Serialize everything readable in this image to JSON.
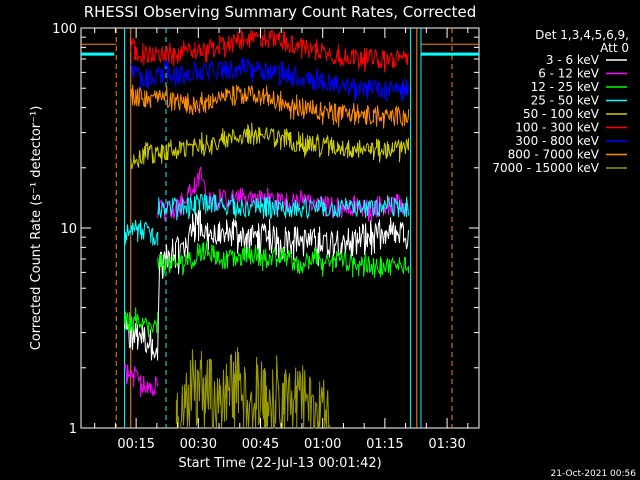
{
  "chart_data": {
    "type": "line",
    "title": "RHESSI Observing Summary Count Rates, Corrected",
    "xlabel": "Start Time (22-Jul-13 00:01:42)",
    "ylabel": "Corrected Count Rate (s⁻¹ detector⁻¹)",
    "x_ticks": [
      "00:15",
      "00:30",
      "00:45",
      "01:00",
      "01:15",
      "01:30"
    ],
    "y_ticks": [
      "1",
      "10",
      "100"
    ],
    "yscale": "log",
    "xlim_minutes": [
      0,
      96
    ],
    "ylim": [
      1,
      100
    ],
    "legend_header": [
      "Det 1,3,4,5,6,9,",
      "Att 0"
    ],
    "legend_position": "right",
    "footer_date": "21-Oct-2021 00:56",
    "vlines": [
      {
        "t": 8.5,
        "color": "#ff8c00",
        "style": "dashed"
      },
      {
        "t": 10.5,
        "color": "#00ffff",
        "style": "solid"
      },
      {
        "t": 12.0,
        "color": "#ff8c00",
        "style": "solid"
      },
      {
        "t": 20.5,
        "color": "#00ffff",
        "style": "dashed"
      },
      {
        "t": 79.5,
        "color": "#00ffff",
        "style": "solid"
      },
      {
        "t": 81.0,
        "color": "#ff8c00",
        "style": "solid"
      },
      {
        "t": 82.0,
        "color": "#00ffff",
        "style": "solid"
      },
      {
        "t": 89.5,
        "color": "#ff8c00",
        "style": "dashed"
      }
    ],
    "series": [
      {
        "name": "3 - 6 keV",
        "color": "#ffffff",
        "segments": [
          {
            "x": [
              10.5,
              12.0,
              14.0,
              17.5,
              18.5,
              19.0,
              20.5,
              22.0,
              25.0,
              28.0,
              30.0,
              32.0,
              34.0,
              37.0,
              40.0,
              45.0,
              48.0,
              50.0,
              55.0,
              60.0,
              63.0,
              66.0,
              70.0,
              74.0,
              76.0,
              79.0
            ],
            "y": [
              3.0,
              2.8,
              3.0,
              2.6,
              2.1,
              6.5,
              7.0,
              7.5,
              8.0,
              11.0,
              9.5,
              9.0,
              9.0,
              9.5,
              9.0,
              9.0,
              8.5,
              9.0,
              8.5,
              8.5,
              9.0,
              8.5,
              9.0,
              9.0,
              9.5,
              9.0
            ]
          }
        ]
      },
      {
        "name": "6 - 12 keV",
        "color": "#ff00ff",
        "segments": [
          {
            "x": [
              10.5,
              12.5,
              14.0,
              17.0,
              17.5,
              18.5
            ],
            "y": [
              1.9,
              1.9,
              1.7,
              1.6,
              1.5,
              1.8
            ]
          },
          {
            "x": [
              18.5,
              20.5,
              23.0,
              25.0,
              27.0,
              29.0,
              30.0,
              32.0,
              35.0,
              40.0,
              45.0,
              50.0,
              55.0,
              60.0,
              65.0,
              70.0,
              75.0,
              79.0
            ],
            "y": [
              13.0,
              12.5,
              13.0,
              13.5,
              16.0,
              19.0,
              15.0,
              14.0,
              14.0,
              14.5,
              14.0,
              13.5,
              13.5,
              13.0,
              13.0,
              12.5,
              13.0,
              12.5
            ]
          }
        ]
      },
      {
        "name": "12 - 25 keV",
        "color": "#00ff00",
        "segments": [
          {
            "x": [
              10.5,
              12.0,
              14.0,
              16.0,
              17.5,
              18.5
            ],
            "y": [
              3.5,
              3.3,
              3.6,
              3.2,
              3.1,
              3.3
            ]
          },
          {
            "x": [
              18.5,
              20.5,
              24.0,
              27.0,
              30.0,
              33.0,
              38.0,
              42.0,
              45.0,
              50.0,
              53.0,
              56.0,
              58.0,
              62.0,
              67.0,
              72.0,
              76.0,
              79.0
            ],
            "y": [
              7.0,
              6.5,
              6.8,
              7.0,
              8.0,
              7.0,
              7.0,
              7.5,
              7.0,
              7.0,
              6.5,
              7.5,
              6.5,
              7.0,
              6.5,
              6.5,
              6.5,
              6.8
            ]
          }
        ]
      },
      {
        "name": "25 - 50 keV",
        "color": "#00ffff",
        "segments": [
          {
            "x": [
              10.5,
              12.0,
              14.0,
              16.0,
              18.0,
              18.5
            ],
            "y": [
              9.0,
              10.5,
              9.5,
              10.0,
              9.0,
              9.5
            ]
          },
          {
            "x": [
              18.5,
              20.5,
              25.0,
              30.0,
              35.0,
              40.0,
              45.0,
              50.0,
              55.0,
              60.0,
              65.0,
              70.0,
              75.0,
              79.0
            ],
            "y": [
              12.5,
              12.8,
              13.0,
              13.5,
              13.0,
              12.5,
              12.5,
              12.5,
              12.5,
              12.5,
              12.5,
              12.5,
              12.8,
              12.5
            ]
          }
        ]
      },
      {
        "name": "50 - 100 keV",
        "color": "#cccc00",
        "segments": [
          {
            "x": [
              12.0,
              14.0,
              16.0,
              18.0,
              20.0,
              24.0,
              28.0,
              32.0,
              36.0,
              40.0,
              44.0,
              48.0,
              52.0,
              56.0,
              60.0,
              64.0,
              68.0,
              72.0,
              76.0,
              79.0
            ],
            "y": [
              21.0,
              22.5,
              24.0,
              23.0,
              24.0,
              24.5,
              26.0,
              27.0,
              28.0,
              29.5,
              29.0,
              28.0,
              27.0,
              26.0,
              25.5,
              25.0,
              25.0,
              24.5,
              25.0,
              25.5
            ]
          }
        ]
      },
      {
        "name": "100 - 300 keV",
        "color": "#ff0000",
        "segments": [
          {
            "x": [
              12.0,
              14.0,
              18.0,
              22.0,
              26.0,
              30.0,
              34.0,
              38.0,
              42.0,
              46.0,
              50.0,
              54.0,
              58.0,
              62.0,
              66.0,
              70.0,
              74.0,
              78.0,
              79.0
            ],
            "y": [
              80.0,
              75.0,
              73.0,
              74.0,
              76.0,
              78.0,
              82.0,
              85.0,
              90.0,
              88.0,
              84.0,
              80.0,
              76.0,
              73.0,
              72.0,
              71.0,
              70.0,
              70.0,
              72.0
            ]
          }
        ]
      },
      {
        "name": "300 - 800 keV",
        "color": "#0000ff",
        "segments": [
          {
            "x": [
              12.0,
              14.0,
              17.0,
              20.0,
              24.0,
              28.0,
              32.0,
              36.0,
              40.0,
              44.0,
              48.0,
              52.0,
              56.0,
              60.0,
              64.0,
              68.0,
              72.0,
              76.0,
              79.0
            ],
            "y": [
              63.0,
              57.0,
              57.0,
              60.0,
              59.0,
              60.0,
              62.0,
              62.0,
              63.0,
              62.0,
              60.0,
              58.0,
              55.0,
              53.0,
              51.0,
              50.0,
              49.5,
              49.5,
              50.0
            ]
          }
        ]
      },
      {
        "name": "800 - 7000 keV",
        "color": "#ff8c00",
        "segments": [
          {
            "x": [
              0.0,
              8.5
            ],
            "y": [
              83.0,
              83.0
            ]
          },
          {
            "x": [
              12.0,
              14.0,
              17.0,
              20.0,
              23.0,
              26.0,
              30.0,
              34.0,
              38.0,
              42.0,
              46.0,
              50.0,
              54.0,
              58.0,
              62.0,
              66.0,
              70.0,
              74.0,
              78.0,
              79.0
            ],
            "y": [
              46.0,
              45.0,
              44.0,
              45.0,
              43.0,
              41.0,
              42.0,
              44.0,
              46.0,
              47.0,
              44.0,
              41.0,
              40.0,
              38.5,
              37.5,
              37.0,
              36.5,
              36.0,
              37.0,
              38.0
            ]
          },
          {
            "x": [
              82.0,
              96.0
            ],
            "y": [
              83.0,
              83.0
            ]
          }
        ]
      },
      {
        "name": "7000 - 15000 keV",
        "color": "#999900",
        "segments": [
          {
            "x": [
              23.0,
              26.0,
              30.0,
              34.0,
              38.0,
              40.0,
              42.0,
              44.0,
              46.0,
              48.0,
              50.0,
              52.0,
              54.0,
              56.0,
              58.0,
              60.0
            ],
            "y": [
              1.0,
              1.5,
              1.6,
              1.4,
              1.8,
              1.3,
              1.6,
              1.5,
              1.2,
              1.6,
              1.3,
              1.5,
              1.4,
              1.2,
              1.3,
              1.1
            ]
          }
        ]
      }
    ],
    "extra_lines": [
      {
        "color": "#00ffff",
        "x": [
          0.0,
          8.0
        ],
        "y": [
          74.0,
          74.0
        ]
      },
      {
        "color": "#00ffff",
        "x": [
          82.0,
          96.0
        ],
        "y": [
          74.0,
          74.0
        ]
      }
    ]
  }
}
